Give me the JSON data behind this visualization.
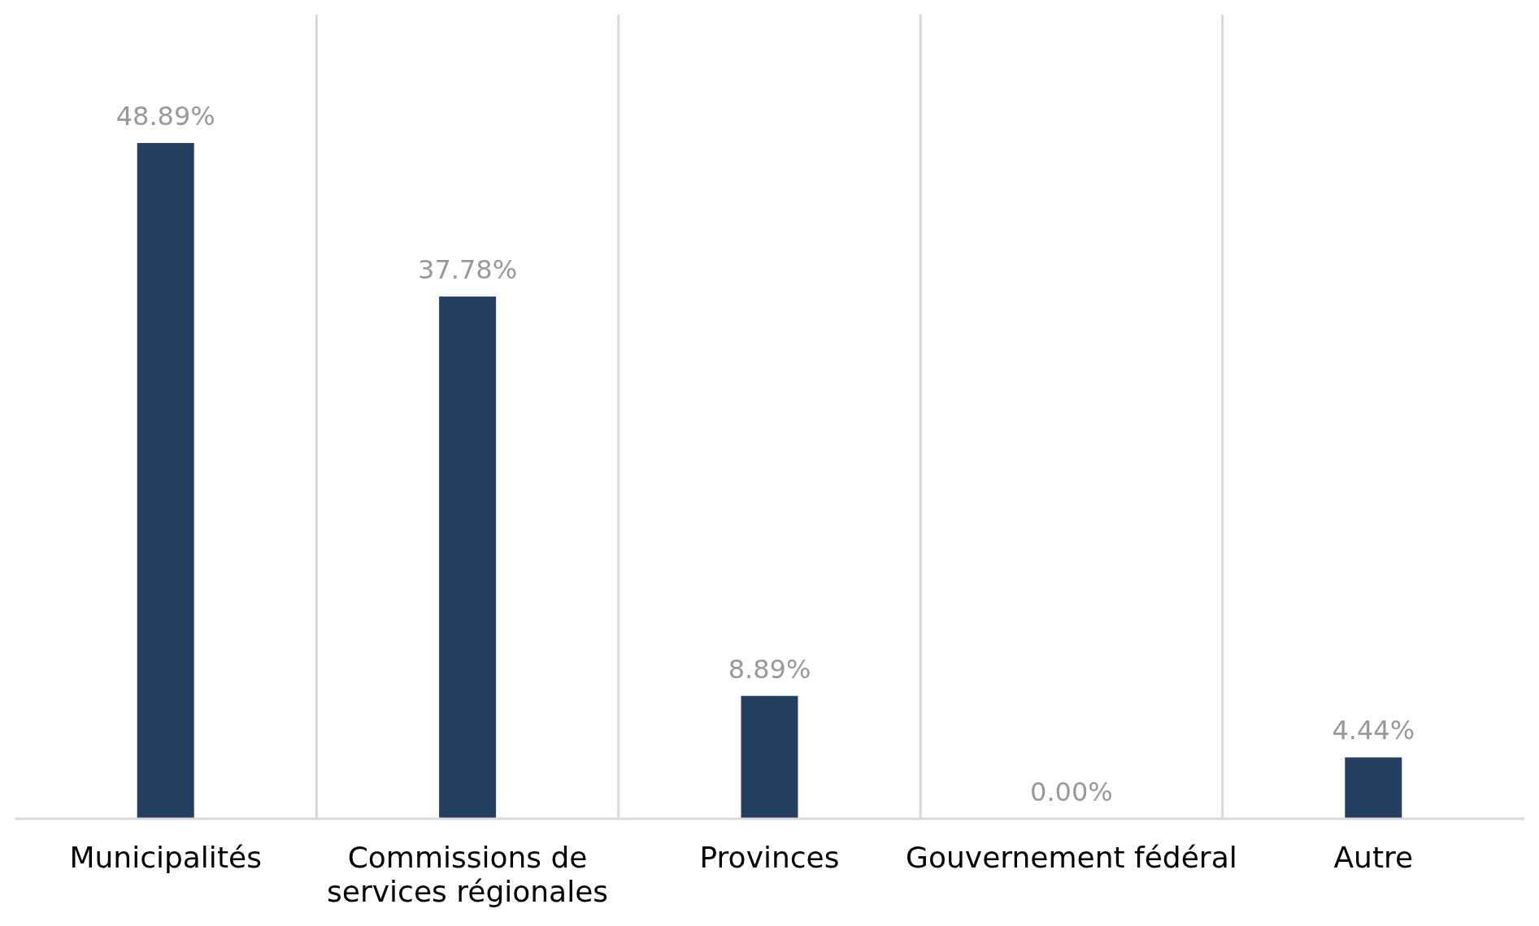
{
  "chart_data": {
    "type": "bar",
    "categories": [
      "Municipalités",
      "Commissions de services régionales",
      "Provinces",
      "Gouvernement fédéral",
      "Autre"
    ],
    "values": [
      48.89,
      37.78,
      8.89,
      0,
      4.44
    ],
    "value_labels": [
      "48.89%",
      "37.78%",
      "8.89%",
      "0.00%",
      "4.44%"
    ],
    "color": "#243f60",
    "grid": "x"
  }
}
